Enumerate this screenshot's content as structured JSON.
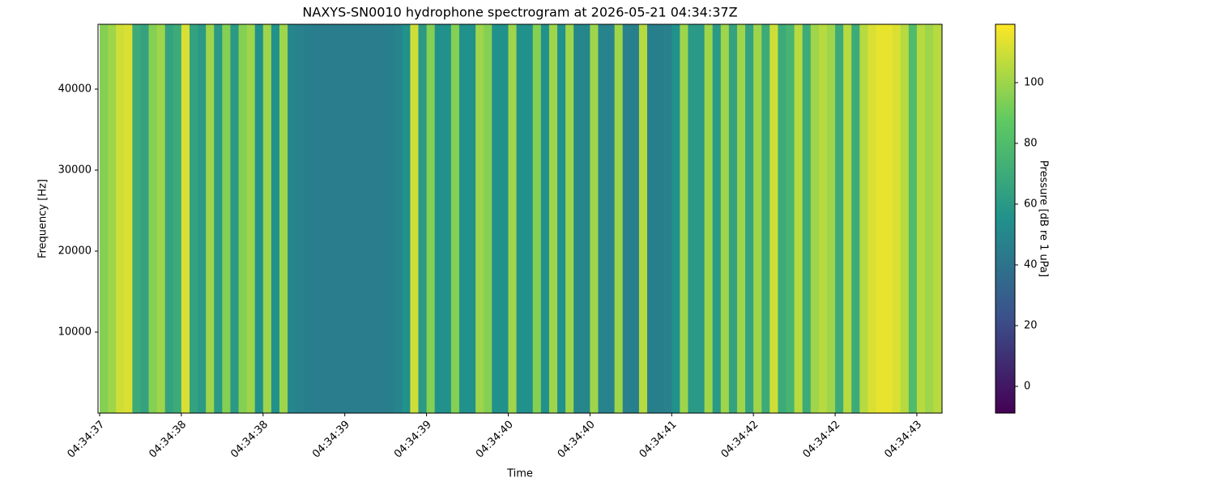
{
  "chart_data": {
    "type": "spectrogram",
    "title": "NAXYS-SN0010 hydrophone spectrogram at 2026-05-21 04:34:37Z",
    "x_label": "Time",
    "y_label": "Frequency [Hz]",
    "colorbar_label": "Pressure [dB re 1 uPa]",
    "cmap": "viridis",
    "x": [
      0,
      0.05,
      0.1,
      0.15,
      0.2,
      0.25,
      0.3,
      0.35,
      0.4,
      0.45,
      0.5,
      0.55,
      0.6,
      0.65,
      0.7,
      0.75,
      0.8,
      0.85,
      0.9,
      0.95,
      1,
      1.05,
      1.1,
      1.15,
      1.2,
      1.25,
      1.3,
      1.35,
      1.4,
      1.45,
      1.5,
      1.55,
      1.6,
      1.65,
      1.7,
      1.75,
      1.8,
      1.85,
      1.9,
      1.95,
      2,
      2.05,
      2.1,
      2.15,
      2.2,
      2.25,
      2.3,
      2.35,
      2.4,
      2.45,
      2.5,
      2.55,
      2.6,
      2.65,
      2.7,
      2.75,
      2.8,
      2.85,
      2.9,
      2.95,
      3,
      3.05,
      3.1,
      3.15,
      3.2,
      3.25,
      3.3,
      3.35,
      3.4,
      3.45,
      3.5,
      3.55,
      3.6,
      3.65,
      3.7,
      3.75,
      3.8,
      3.85,
      3.9,
      3.95,
      4,
      4.05,
      4.1,
      4.15,
      4.2,
      4.25,
      4.3,
      4.35,
      4.4,
      4.45,
      4.5,
      4.55,
      4.6,
      4.65,
      4.7,
      4.75,
      4.8,
      4.85,
      4.9,
      4.95,
      5,
      5.05,
      5.1
    ],
    "values": [
      95,
      100,
      110,
      112,
      70,
      65,
      95,
      100,
      65,
      70,
      112,
      65,
      60,
      100,
      60,
      95,
      60,
      95,
      100,
      55,
      100,
      55,
      100,
      50,
      47,
      46,
      45,
      45,
      45,
      45,
      45,
      45,
      45,
      45,
      45,
      46,
      48,
      55,
      110,
      60,
      95,
      55,
      55,
      95,
      55,
      55,
      100,
      95,
      55,
      55,
      100,
      55,
      55,
      95,
      55,
      100,
      55,
      100,
      50,
      50,
      100,
      48,
      48,
      100,
      47,
      46,
      105,
      46,
      46,
      47,
      55,
      100,
      60,
      60,
      100,
      60,
      100,
      65,
      100,
      65,
      100,
      70,
      110,
      70,
      75,
      105,
      70,
      100,
      105,
      100,
      70,
      105,
      70,
      105,
      112,
      115,
      115,
      112,
      105,
      80,
      105,
      100,
      105
    ],
    "xlim": [
      -0.01,
      5.154
    ],
    "xticks": [
      {
        "value": 0,
        "label": "04:34:37"
      },
      {
        "value": 0.5,
        "label": "04:34:38"
      },
      {
        "value": 1,
        "label": "04:34:38"
      },
      {
        "value": 1.5,
        "label": "04:34:39"
      },
      {
        "value": 2,
        "label": "04:34:39"
      },
      {
        "value": 2.5,
        "label": "04:34:40"
      },
      {
        "value": 3,
        "label": "04:34:40"
      },
      {
        "value": 3.5,
        "label": "04:34:41"
      },
      {
        "value": 4,
        "label": "04:34:42"
      },
      {
        "value": 4.5,
        "label": "04:34:42"
      },
      {
        "value": 5,
        "label": "04:34:43"
      }
    ],
    "ylim": [
      0,
      48000
    ],
    "yticks": [
      10000,
      20000,
      30000,
      40000
    ],
    "clim": [
      -8.8,
      119.2
    ],
    "cticks": [
      0,
      20,
      40,
      60,
      80,
      100
    ]
  }
}
